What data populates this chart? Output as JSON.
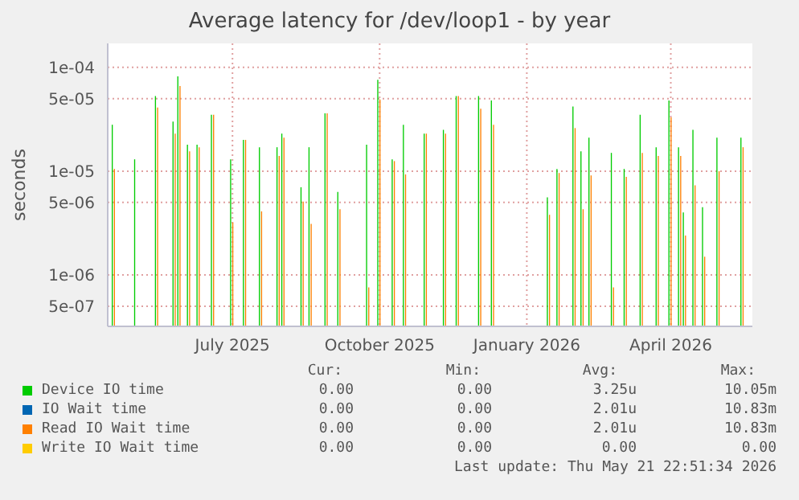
{
  "chart_data": {
    "type": "bar",
    "title": "Average latency for /dev/loop1 - by year",
    "ylabel": "seconds",
    "log": "y",
    "grid": true,
    "legend": "bottom",
    "xlim": [
      "2025-04-14",
      "2026-05-22"
    ],
    "xticks": [
      {
        "value": "2025-07-01",
        "label": "July 2025"
      },
      {
        "value": "2025-10-01",
        "label": "October 2025"
      },
      {
        "value": "2026-01-01",
        "label": "January 2026"
      },
      {
        "value": "2026-04-01",
        "label": "April 2026"
      }
    ],
    "ylim": [
      3.2e-07,
      0.00017
    ],
    "yticks": [
      {
        "value": 5e-07,
        "label": "5e-07"
      },
      {
        "value": 1e-06,
        "label": "1e-06"
      },
      {
        "value": 5e-06,
        "label": "5e-06"
      },
      {
        "value": 1e-05,
        "label": "1e-05"
      },
      {
        "value": 5e-05,
        "label": "5e-05"
      },
      {
        "value": 0.0001,
        "label": "1e-04"
      }
    ],
    "x": [
      "2025-04-18",
      "2025-05-02",
      "2025-05-15",
      "2025-05-26",
      "2025-05-29",
      "2025-06-04",
      "2025-06-10",
      "2025-06-19",
      "2025-07-01",
      "2025-07-09",
      "2025-07-19",
      "2025-07-30",
      "2025-08-02",
      "2025-08-14",
      "2025-08-19",
      "2025-08-29",
      "2025-09-06",
      "2025-09-24",
      "2025-10-01",
      "2025-10-10",
      "2025-10-17",
      "2025-10-30",
      "2025-11-11",
      "2025-11-19",
      "2025-12-03",
      "2025-12-11",
      "2026-01-15",
      "2026-01-21",
      "2026-01-31",
      "2026-02-05",
      "2026-02-10",
      "2026-02-24",
      "2026-03-04",
      "2026-03-14",
      "2026-03-24",
      "2026-04-01",
      "2026-04-07",
      "2026-04-10",
      "2026-04-16",
      "2026-04-22",
      "2026-05-01",
      "2026-05-16"
    ],
    "series": [
      {
        "name": "Device IO time",
        "color": "#00cc00",
        "values": [
          2.8e-05,
          1.3e-05,
          5.3e-05,
          3e-05,
          8.2e-05,
          1.8e-05,
          1.8e-05,
          3.5e-05,
          1.3e-05,
          2e-05,
          1.7e-05,
          1.7e-05,
          2.3e-05,
          7e-06,
          1.7e-05,
          3.6e-05,
          6.3e-06,
          1.8e-05,
          7.6e-05,
          1.3e-05,
          2.8e-05,
          2.3e-05,
          2.5e-05,
          5.3e-05,
          5.3e-05,
          4.8e-05,
          5.6e-06,
          1.05e-05,
          4.2e-05,
          1.55e-05,
          2.1e-05,
          1.5e-05,
          1.05e-05,
          3.5e-05,
          1.7e-05,
          4.8e-05,
          1.7e-05,
          4e-06,
          2.5e-05,
          4.5e-06,
          2.1e-05,
          2.1e-05
        ]
      },
      {
        "name": "IO Wait time",
        "color": "#0066b3",
        "values": [
          null,
          null,
          null,
          null,
          null,
          null,
          null,
          null,
          null,
          null,
          null,
          null,
          null,
          null,
          null,
          null,
          null,
          null,
          null,
          null,
          null,
          null,
          null,
          null,
          null,
          null,
          null,
          null,
          null,
          null,
          null,
          null,
          null,
          null,
          null,
          null,
          null,
          null,
          null,
          null,
          null,
          null
        ]
      },
      {
        "name": "Read IO Wait time",
        "color": "#ff8000",
        "values": [
          1.05e-05,
          null,
          4.1e-05,
          2.3e-05,
          6.6e-05,
          1.55e-05,
          1.7e-05,
          3.5e-05,
          3.2e-06,
          2e-05,
          4.1e-06,
          1.4e-05,
          2.1e-05,
          5.1e-06,
          3.1e-06,
          3.6e-05,
          4.3e-06,
          7.6e-07,
          4.9e-05,
          1.25e-05,
          9.3e-06,
          2.3e-05,
          2.3e-05,
          5.3e-05,
          4e-05,
          2.8e-05,
          3.8e-06,
          9.6e-06,
          2.6e-05,
          4.3e-06,
          9.1e-06,
          7.6e-07,
          8.8e-06,
          1.5e-05,
          1.4e-05,
          3.3e-05,
          1.4e-05,
          2.4e-06,
          7.3e-06,
          1.5e-06,
          1e-05,
          1.7e-05
        ]
      },
      {
        "name": "Write IO Wait time",
        "color": "#ffcc00",
        "values": [
          null,
          null,
          null,
          null,
          null,
          null,
          null,
          null,
          null,
          null,
          null,
          null,
          null,
          null,
          null,
          null,
          null,
          null,
          null,
          null,
          null,
          null,
          null,
          null,
          null,
          null,
          null,
          null,
          null,
          null,
          null,
          null,
          null,
          null,
          null,
          null,
          null,
          null,
          null,
          null,
          null,
          null
        ]
      }
    ],
    "annotations": [
      "Cur:",
      "Min:",
      "Avg:",
      "Max:",
      "0.00",
      "0.00",
      "3.25u",
      "10.05m",
      "0.00",
      "0.00",
      "2.01u",
      "10.83m",
      "0.00",
      "0.00",
      "2.01u",
      "10.83m",
      "0.00",
      "0.00",
      "0.00",
      "0.00",
      "Last update: Thu May 21 22:51:34 2026"
    ]
  }
}
